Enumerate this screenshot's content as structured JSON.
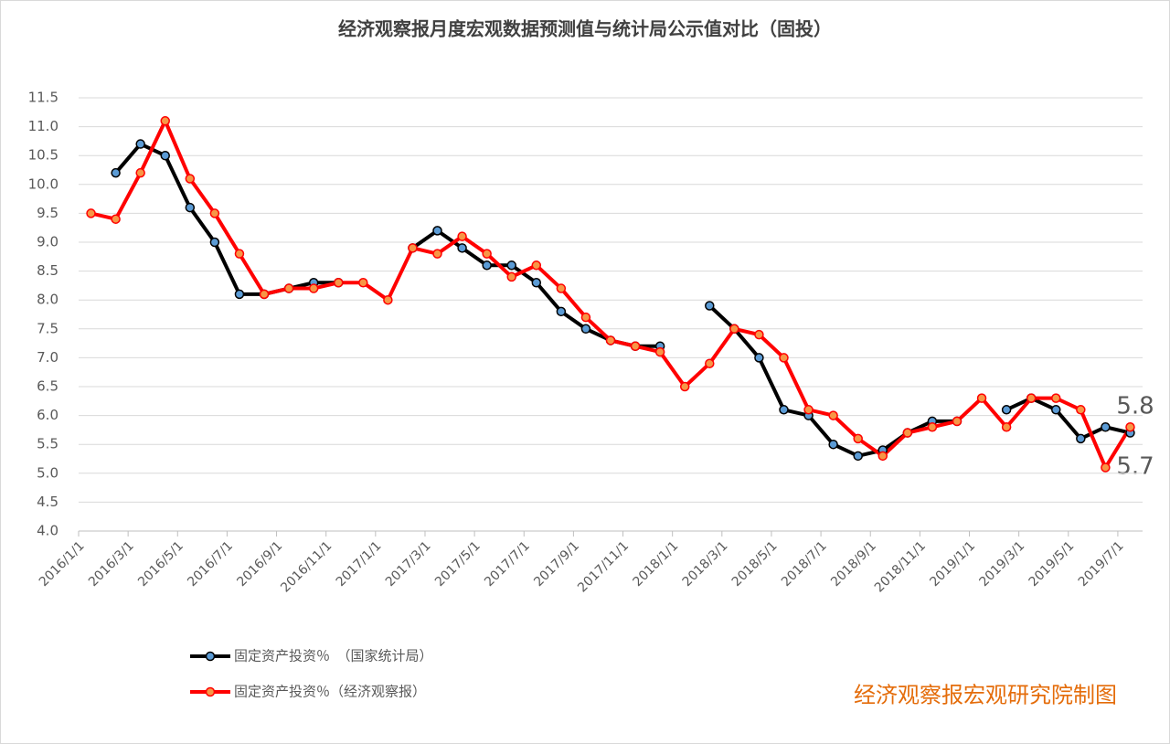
{
  "chart_data": {
    "type": "line",
    "title": "经济观察报月度宏观数据预测值与统计局公示值对比（固投）",
    "categories": [
      "2016/1/1",
      null,
      "2016/3/1",
      null,
      "2016/5/1",
      null,
      "2016/7/1",
      null,
      "2016/9/1",
      null,
      "2016/11/1",
      null,
      "2017/1/1",
      null,
      "2017/3/1",
      null,
      "2017/5/1",
      null,
      "2017/7/1",
      null,
      "2017/9/1",
      null,
      "2017/11/1",
      null,
      "2018/1/1",
      null,
      "2018/3/1",
      null,
      "2018/5/1",
      null,
      "2018/7/1",
      null,
      "2018/9/1",
      null,
      "2018/11/1",
      null,
      "2019/1/1",
      null,
      "2019/3/1",
      null,
      "2019/5/1",
      null,
      "2019/7/1"
    ],
    "series": [
      {
        "name": "固定资产投资％　（国家统计局）",
        "color": "#000000",
        "marker_color": "#5b9bd5",
        "values": [
          null,
          10.2,
          10.7,
          10.5,
          9.6,
          9.0,
          8.1,
          8.1,
          8.2,
          8.3,
          8.3,
          null,
          null,
          8.9,
          9.2,
          8.9,
          8.6,
          8.6,
          8.3,
          7.8,
          7.5,
          7.3,
          7.2,
          7.2,
          null,
          7.9,
          7.5,
          7.0,
          6.1,
          6.0,
          5.5,
          5.3,
          5.4,
          5.7,
          5.9,
          5.9,
          null,
          6.1,
          6.3,
          6.1,
          5.6,
          5.8,
          5.7
        ]
      },
      {
        "name": "固定资产投资％（经济观察报）",
        "color": "#ff0000",
        "marker_color": "#f79646",
        "values": [
          9.5,
          9.4,
          10.2,
          11.1,
          10.1,
          9.5,
          8.8,
          8.1,
          8.2,
          8.2,
          8.3,
          8.3,
          8.0,
          8.9,
          8.8,
          9.1,
          8.8,
          8.4,
          8.6,
          8.2,
          7.7,
          7.3,
          7.2,
          7.1,
          6.5,
          6.9,
          7.5,
          7.4,
          7.0,
          6.1,
          6.0,
          5.6,
          5.3,
          5.7,
          5.8,
          5.9,
          6.3,
          5.8,
          6.3,
          6.3,
          6.1,
          5.1,
          5.8
        ]
      }
    ],
    "ylim": [
      4,
      11.5
    ],
    "yticks": [
      {
        "value": 4,
        "label": "4.0"
      },
      4.5,
      {
        "value": 5,
        "label": "5.0"
      },
      5.5,
      {
        "value": 6,
        "label": "6.0"
      },
      6.5,
      {
        "value": 7,
        "label": "7.0"
      },
      7.5,
      {
        "value": 8,
        "label": "8.0"
      },
      8.5,
      {
        "value": 9,
        "label": "9.0"
      },
      9.5,
      {
        "value": 10,
        "label": "10.0"
      },
      10.5,
      {
        "value": 11,
        "label": "11.0"
      },
      11.5
    ],
    "grid": true,
    "legend": "bottom-left",
    "annotations": [
      "5.8",
      "5.7"
    ],
    "credit": "经济观察报宏观研究院制图"
  }
}
